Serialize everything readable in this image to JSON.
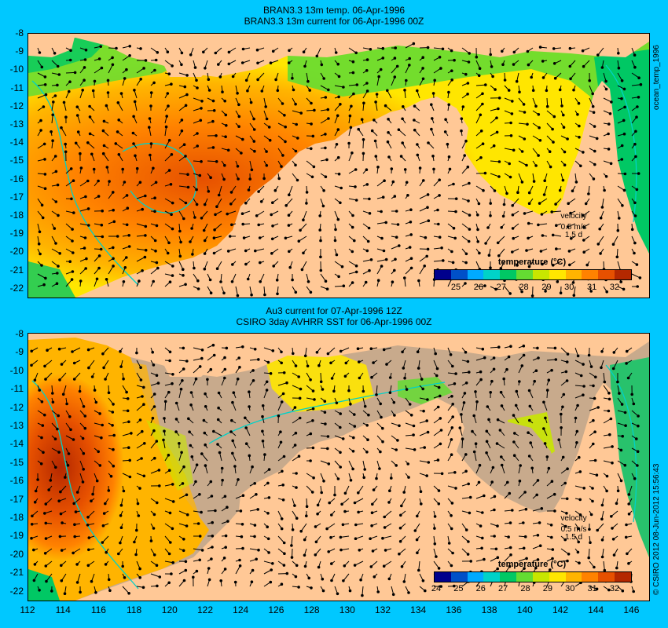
{
  "top_panel": {
    "title_line1": "BRAN3.3 13m temp. 06-Apr-1996",
    "title_line2": "BRAN3.3 13m current for 06-Apr-1996 00Z",
    "side_label": "ocean_temp_1996",
    "velocity_label": "velocity",
    "velocity_scale": "0.5 m/s",
    "velocity_time": "1.5 d",
    "legend_title": "temperature (°C)",
    "colorbar_ticks": [
      "25",
      "26",
      "27",
      "28",
      "29",
      "30",
      "31",
      "32"
    ]
  },
  "bottom_panel": {
    "title_line1": "Au3 current for 07-Apr-1996 12Z",
    "title_line2": "CSIRO 3day AVHRR SST for 06-Apr-1996 00Z",
    "side_label": "© CSIRO 2012  08-Jun-2012 15:56:43",
    "velocity_label": "velocity",
    "velocity_scale": "0.5 m/s",
    "velocity_time": "1.5 d",
    "legend_title": "temperature (°C)",
    "colorbar_ticks": [
      "24",
      "25",
      "26",
      "27",
      "28",
      "29",
      "30",
      "31",
      "32"
    ]
  },
  "axes": {
    "y_ticks": [
      "-8",
      "-9",
      "-10",
      "-11",
      "-12",
      "-13",
      "-14",
      "-15",
      "-16",
      "-17",
      "-18",
      "-19",
      "-20",
      "-21",
      "-22"
    ],
    "x_ticks": [
      "112",
      "114",
      "116",
      "118",
      "120",
      "122",
      "124",
      "126",
      "128",
      "130",
      "132",
      "134",
      "136",
      "138",
      "140",
      "142",
      "144",
      "146"
    ],
    "lon_range": [
      112,
      147
    ],
    "lat_range": [
      -22.5,
      -8
    ]
  },
  "colors": {
    "background": "#00c8ff",
    "land": "#ffc896",
    "missing_data": "#c8aa8c",
    "colorbar": [
      "#00008c",
      "#0050c8",
      "#00aaff",
      "#00d2c8",
      "#00c864",
      "#64dc32",
      "#c8e600",
      "#ffe600",
      "#ffb400",
      "#ff8200",
      "#e65000",
      "#b42800"
    ]
  }
}
